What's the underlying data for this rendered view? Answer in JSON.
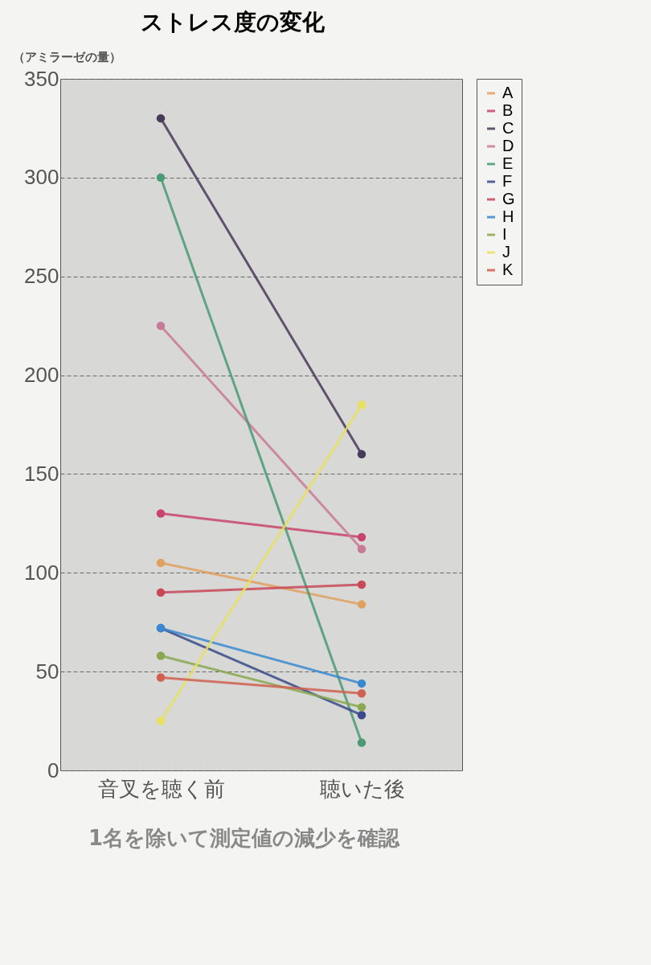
{
  "chart_data": {
    "type": "line",
    "title": "ストレス度の変化",
    "ylabel": "（アミラーゼの量）",
    "categories": [
      "音叉を聴く前",
      "聴いた後"
    ],
    "ylim": [
      0,
      350
    ],
    "yticks": [
      0,
      50,
      100,
      150,
      200,
      250,
      300,
      350
    ],
    "grid": "y",
    "legend": "right",
    "marker": "circle",
    "annotations": [
      "1名を除いて測定値の減少を確認"
    ],
    "series": [
      {
        "name": "A",
        "color": "#e0a060",
        "values": [
          105,
          84
        ]
      },
      {
        "name": "B",
        "color": "#c8446a",
        "values": [
          130,
          118
        ]
      },
      {
        "name": "C",
        "color": "#4a3a5a",
        "values": [
          330,
          160
        ]
      },
      {
        "name": "D",
        "color": "#c87a98",
        "values": [
          225,
          112
        ]
      },
      {
        "name": "E",
        "color": "#4a9a72",
        "values": [
          300,
          14
        ]
      },
      {
        "name": "F",
        "color": "#3a4a8a",
        "values": [
          72,
          28
        ]
      },
      {
        "name": "G",
        "color": "#c84858",
        "values": [
          90,
          94
        ]
      },
      {
        "name": "H",
        "color": "#3a88d0",
        "values": [
          72,
          44
        ]
      },
      {
        "name": "I",
        "color": "#8aa850",
        "values": [
          58,
          32
        ]
      },
      {
        "name": "J",
        "color": "#e8e060",
        "values": [
          25,
          185
        ]
      },
      {
        "name": "K",
        "color": "#d06050",
        "values": [
          47,
          39
        ]
      }
    ]
  }
}
